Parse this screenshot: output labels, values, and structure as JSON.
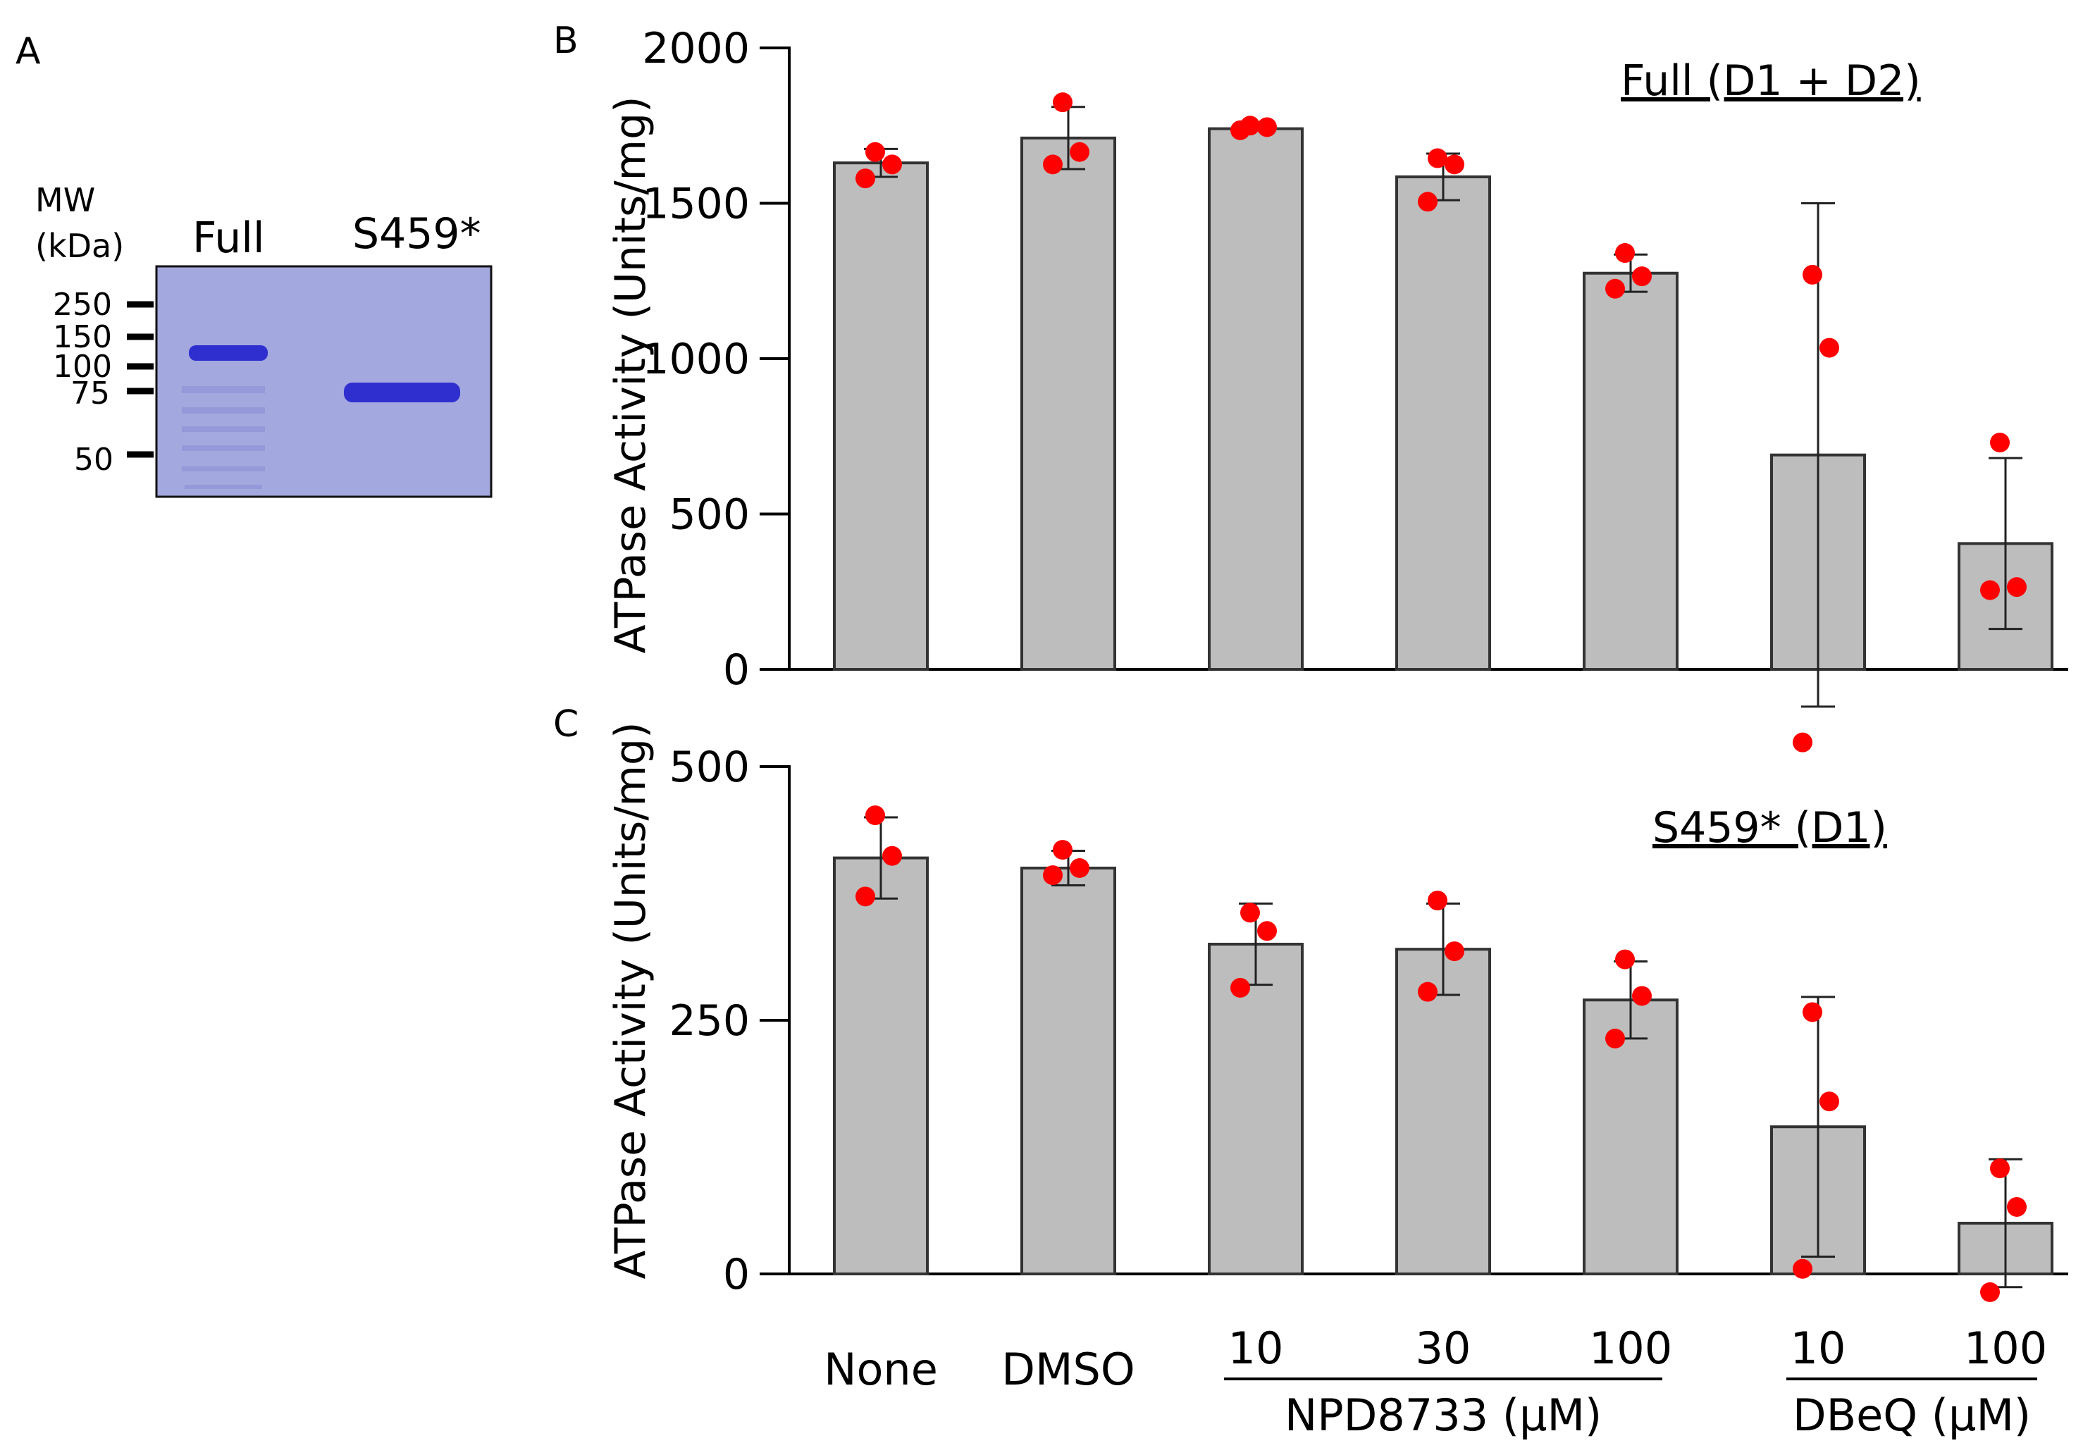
{
  "panels": {
    "A": "A",
    "B": "B",
    "C": "C"
  },
  "gel": {
    "mw_header_1": "MW",
    "mw_header_2": "(kDa)",
    "lane_labels": [
      "Full",
      "S459*"
    ],
    "markers": [
      "250",
      "150",
      "100",
      "75",
      "50"
    ],
    "colors": {
      "background": "#a3a8de",
      "band": "#2f2fd0"
    }
  },
  "categories": [
    "None",
    "DMSO",
    "10",
    "30",
    "100",
    "10",
    "100"
  ],
  "groups": [
    {
      "label": "NPD8733 (µM)",
      "from": 2,
      "to": 4
    },
    {
      "label": "DBeQ (µM)",
      "from": 5,
      "to": 6
    }
  ],
  "colors": {
    "bar": "#bdbdbd",
    "point": "#ff0000",
    "axis": "#000000"
  },
  "chart_data": [
    {
      "type": "bar",
      "panel": "B",
      "inset_label": "Full (D1 + D2)",
      "ylabel": "ATPase Activity (Units/mg)",
      "ylim": [
        0,
        2000
      ],
      "yticks": [
        0,
        500,
        1000,
        1500,
        2000
      ],
      "categories": [
        "None",
        "DMSO",
        "10",
        "30",
        "100",
        "10",
        "100"
      ],
      "values": [
        1630,
        1710,
        1740,
        1585,
        1275,
        690,
        405
      ],
      "error": [
        45,
        100,
        5,
        75,
        60,
        810,
        275
      ],
      "points": [
        [
          1665,
          1625,
          1580
        ],
        [
          1825,
          1665,
          1625
        ],
        [
          1750,
          1745,
          1735
        ],
        [
          1645,
          1625,
          1505
        ],
        [
          1340,
          1265,
          1225
        ],
        [
          1270,
          1035,
          -235
        ],
        [
          730,
          265,
          255
        ]
      ]
    },
    {
      "type": "bar",
      "panel": "C",
      "inset_label": "S459* (D1)",
      "ylabel": "ATPase Activity (Units/mg)",
      "ylim": [
        0,
        500
      ],
      "yticks": [
        0,
        250,
        500
      ],
      "categories": [
        "None",
        "DMSO",
        "10",
        "30",
        "100",
        "10",
        "100"
      ],
      "values": [
        410,
        400,
        325,
        320,
        270,
        145,
        50
      ],
      "error": [
        40,
        17,
        40,
        45,
        38,
        128,
        63
      ],
      "points": [
        [
          452,
          412,
          372
        ],
        [
          418,
          400,
          393
        ],
        [
          356,
          338,
          282
        ],
        [
          368,
          318,
          278
        ],
        [
          310,
          274,
          232
        ],
        [
          258,
          170,
          5
        ],
        [
          104,
          66,
          -18
        ]
      ]
    }
  ]
}
